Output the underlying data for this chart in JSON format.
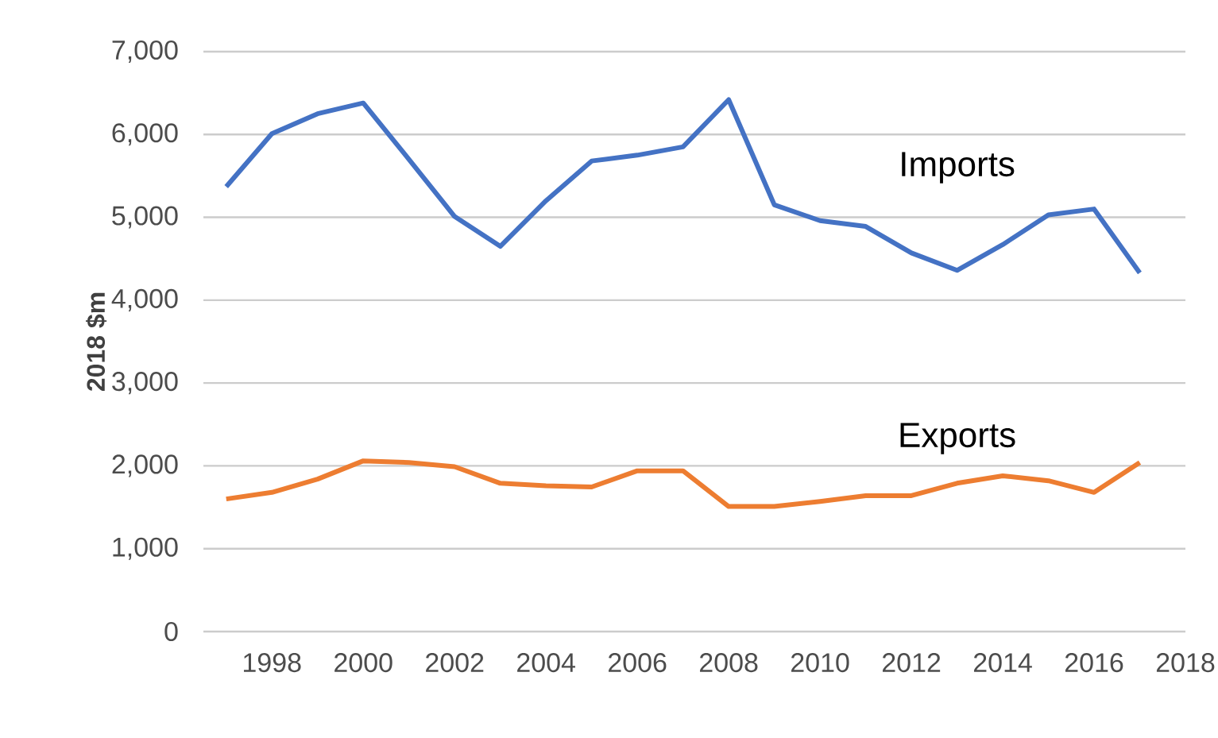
{
  "chart_data": {
    "type": "line",
    "ylabel": "2018 $m",
    "x": [
      1997,
      1998,
      1999,
      2000,
      2001,
      2002,
      2003,
      2004,
      2005,
      2006,
      2007,
      2008,
      2009,
      2010,
      2011,
      2012,
      2013,
      2014,
      2015,
      2016,
      2017
    ],
    "series": [
      {
        "name": "Imports",
        "color": "#4472c4",
        "values": [
          5370,
          6010,
          6250,
          6380,
          5700,
          5010,
          4650,
          5200,
          5680,
          5750,
          5850,
          6420,
          5150,
          4960,
          4890,
          4570,
          4360,
          4670,
          5030,
          5100,
          4330
        ]
      },
      {
        "name": "Exports",
        "color": "#ed7d31",
        "values": [
          1600,
          1680,
          1840,
          2060,
          2040,
          1990,
          1790,
          1760,
          1745,
          1940,
          1940,
          1510,
          1510,
          1570,
          1640,
          1640,
          1790,
          1880,
          1820,
          1680,
          2040
        ]
      }
    ],
    "xlim": [
      1996.5,
      2018
    ],
    "ylim": [
      0,
      7000
    ],
    "xticks": [
      1998,
      2000,
      2002,
      2004,
      2006,
      2008,
      2010,
      2012,
      2014,
      2016,
      2018
    ],
    "yticks": [
      {
        "value": 0,
        "label": "0"
      },
      {
        "value": 1000,
        "label": "1,000"
      },
      {
        "value": 2000,
        "label": "2,000"
      },
      {
        "value": 3000,
        "label": "3,000"
      },
      {
        "value": 4000,
        "label": "4,000"
      },
      {
        "value": 5000,
        "label": "5,000"
      },
      {
        "value": 6000,
        "label": "6,000"
      },
      {
        "value": 7000,
        "label": "7,000"
      }
    ],
    "grid": "y",
    "legend": false,
    "marker": "none",
    "line_style": "solid"
  }
}
